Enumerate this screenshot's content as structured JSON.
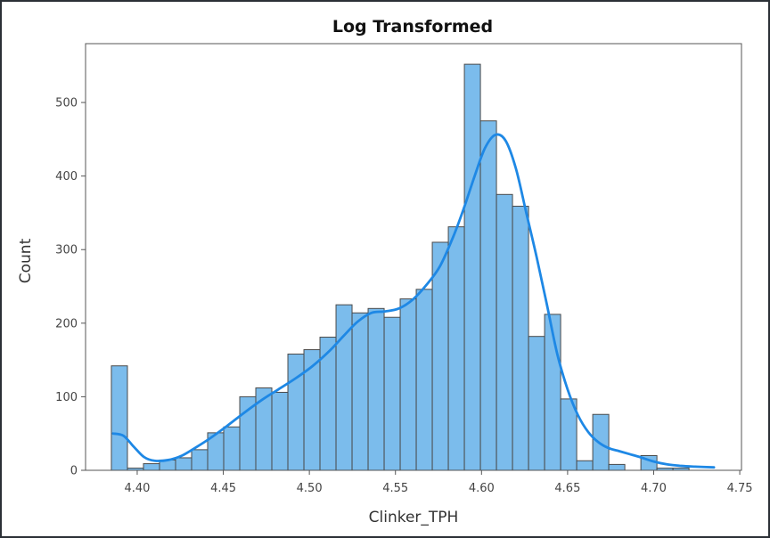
{
  "chart_data": {
    "type": "bar",
    "title": "Log Transformed",
    "xlabel": "Clinker_TPH",
    "ylabel": "Count",
    "xlim": [
      4.37,
      4.751
    ],
    "ylim": [
      0,
      580
    ],
    "xticks": [
      "4.40",
      "4.45",
      "4.50",
      "4.55",
      "4.60",
      "4.65",
      "4.70",
      "4.75"
    ],
    "xtick_values": [
      4.4,
      4.45,
      4.5,
      4.55,
      4.6,
      4.65,
      4.7,
      4.75
    ],
    "yticks": [
      "0",
      "100",
      "200",
      "300",
      "400",
      "500"
    ],
    "ytick_values": [
      0,
      100,
      200,
      300,
      400,
      500
    ],
    "bins": {
      "start": 4.385,
      "width": 0.00932,
      "counts": [
        142,
        3,
        9,
        14,
        17,
        28,
        51,
        59,
        100,
        112,
        106,
        158,
        164,
        181,
        225,
        214,
        220,
        208,
        233,
        246,
        310,
        331,
        552,
        475,
        375,
        359,
        182,
        212,
        97,
        13,
        76,
        8,
        0,
        20,
        3,
        3
      ]
    },
    "kde": {
      "x": [
        4.386,
        4.392,
        4.398,
        4.404,
        4.41,
        4.418,
        4.426,
        4.434,
        4.442,
        4.452,
        4.462,
        4.472,
        4.482,
        4.492,
        4.502,
        4.512,
        4.52,
        4.528,
        4.536,
        4.544,
        4.552,
        4.56,
        4.568,
        4.576,
        4.584,
        4.59,
        4.596,
        4.602,
        4.608,
        4.614,
        4.62,
        4.626,
        4.632,
        4.638,
        4.644,
        4.65,
        4.656,
        4.662,
        4.668,
        4.674,
        4.68,
        4.686,
        4.692,
        4.7,
        4.708,
        4.716,
        4.724,
        4.735
      ],
      "y": [
        50,
        47,
        32,
        18,
        13,
        14,
        20,
        31,
        43,
        60,
        78,
        95,
        110,
        125,
        142,
        163,
        183,
        202,
        214,
        216,
        220,
        232,
        252,
        278,
        320,
        358,
        400,
        438,
        456,
        448,
        410,
        350,
        290,
        225,
        158,
        110,
        75,
        52,
        38,
        30,
        26,
        22,
        18,
        12,
        8,
        6,
        5,
        4
      ]
    },
    "bar_color": "#7bbcec",
    "bar_edge_color": "#4a4a4a",
    "kde_color": "#1e88e5",
    "grid": false,
    "legend": "none"
  }
}
